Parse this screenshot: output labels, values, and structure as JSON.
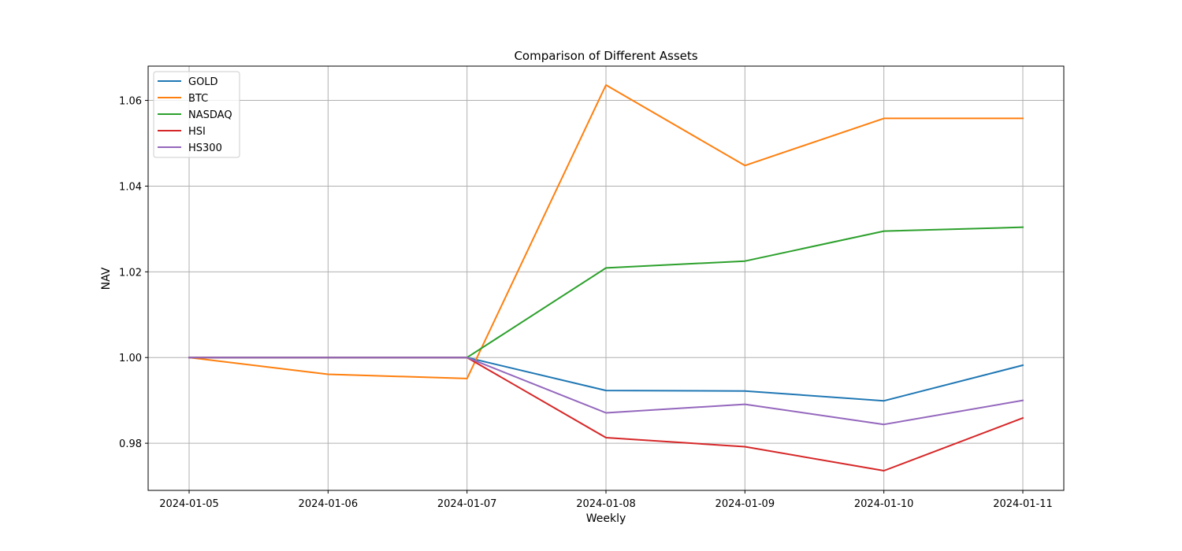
{
  "chart_data": {
    "type": "line",
    "title": "Comparison of Different Assets",
    "xlabel": "Weekly",
    "ylabel": "NAV",
    "x": [
      "2024-01-05",
      "2024-01-06",
      "2024-01-07",
      "2024-01-08",
      "2024-01-09",
      "2024-01-10",
      "2024-01-11"
    ],
    "ylim": [
      0.969,
      1.068
    ],
    "yticks": [
      "0.98",
      "1.00",
      "1.02",
      "1.04",
      "1.06"
    ],
    "grid": true,
    "legend_position": "top-left",
    "series": [
      {
        "name": "GOLD",
        "color": "#1f77b4",
        "values": [
          1.0,
          1.0,
          1.0,
          0.9923,
          0.9922,
          0.9899,
          0.9982
        ]
      },
      {
        "name": "BTC",
        "color": "#ff7f0e",
        "values": [
          1.0,
          0.9961,
          0.9951,
          1.0636,
          1.0448,
          1.0558,
          1.0558
        ]
      },
      {
        "name": "NASDAQ",
        "color": "#2ca02c",
        "values": [
          1.0,
          1.0,
          1.0,
          1.0209,
          1.0225,
          1.0295,
          1.0304
        ]
      },
      {
        "name": "HSI",
        "color": "#d62728",
        "values": [
          1.0,
          1.0,
          1.0,
          0.9813,
          0.9792,
          0.9736,
          0.9859
        ]
      },
      {
        "name": "HS300",
        "color": "#9467bd",
        "values": [
          1.0,
          1.0,
          1.0,
          0.9871,
          0.9891,
          0.9844,
          0.99
        ]
      }
    ]
  }
}
